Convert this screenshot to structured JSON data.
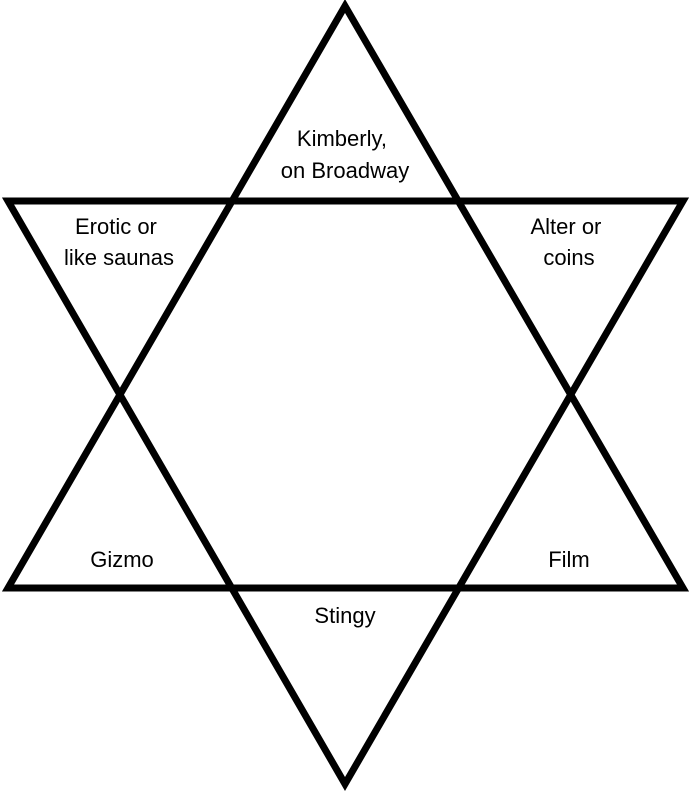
{
  "colors": {
    "stroke": "#000000",
    "background": "#ffffff",
    "text": "#000000"
  },
  "clues": {
    "top": {
      "line1": "Kimberly,",
      "line2": "on Broadway"
    },
    "upper_left": {
      "line1": "Erotic or",
      "line2": "like saunas"
    },
    "upper_right": {
      "line1": "Alter or",
      "line2": "coins"
    },
    "lower_left": {
      "line1": "Gizmo"
    },
    "lower_right": {
      "line1": "Film"
    },
    "bottom": {
      "line1": "Stingy"
    }
  }
}
